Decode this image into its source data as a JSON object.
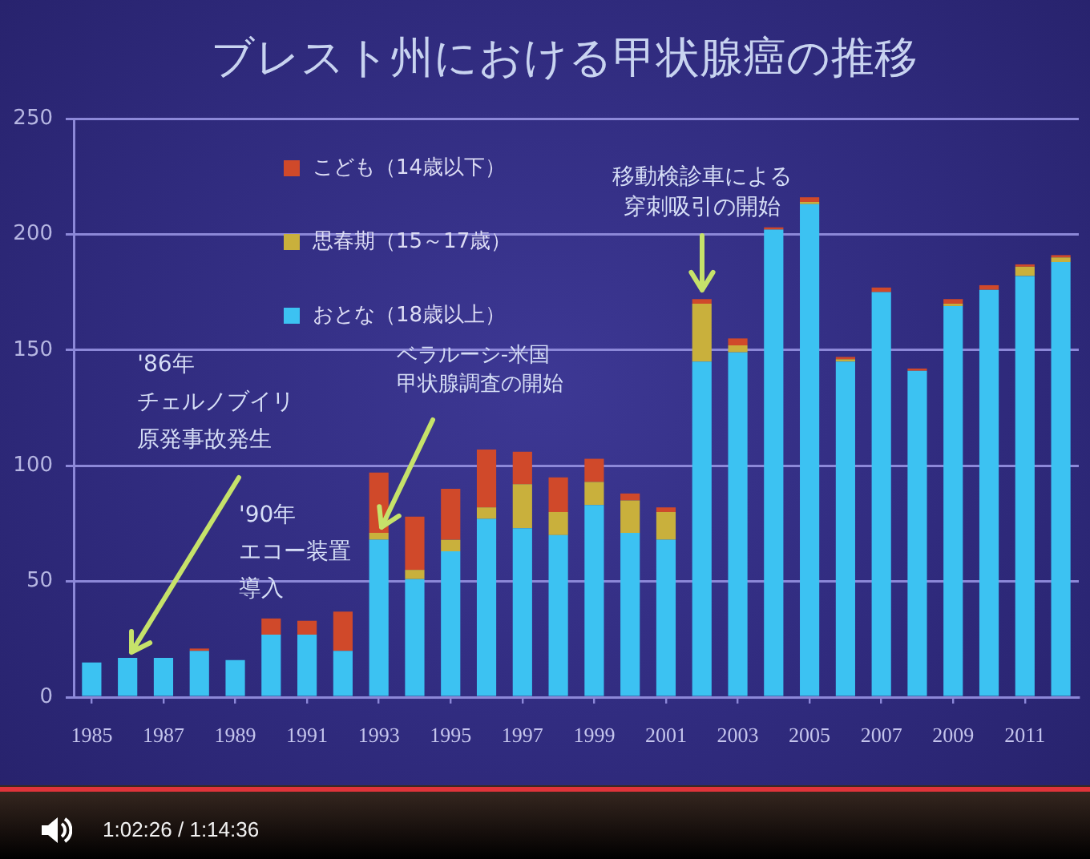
{
  "chart_data": {
    "type": "bar",
    "title": "ブレスト州における甲状腺癌の推移",
    "x": [
      1985,
      1986,
      1987,
      1988,
      1989,
      1990,
      1991,
      1992,
      1993,
      1994,
      1995,
      1996,
      1997,
      1998,
      1999,
      2000,
      2001,
      2002,
      2003,
      2004,
      2005,
      2006,
      2007,
      2008,
      2009,
      2010,
      2011,
      2012
    ],
    "xlim": [
      1984.5,
      2012.5
    ],
    "xticks": [
      1985,
      1987,
      1989,
      1991,
      1993,
      1995,
      1997,
      1999,
      2001,
      2003,
      2005,
      2007,
      2009,
      2011
    ],
    "ylim": [
      0,
      250
    ],
    "yticks": [
      0,
      50,
      100,
      150,
      200,
      250
    ],
    "stacked": true,
    "grid": "y",
    "legend": "top left",
    "series": [
      {
        "name": "おとな（18歳以上）",
        "color": "#3cc2f2",
        "values": [
          15,
          17,
          17,
          20,
          16,
          27,
          27,
          20,
          68,
          51,
          63,
          77,
          73,
          70,
          83,
          71,
          68,
          145,
          149,
          202,
          213,
          145,
          175,
          141,
          169,
          176,
          182,
          188
        ]
      },
      {
        "name": "思春期（15～17歳）",
        "color": "#c9b03c",
        "values": [
          0,
          0,
          0,
          0,
          0,
          0,
          0,
          0,
          3,
          4,
          5,
          5,
          19,
          10,
          10,
          14,
          12,
          25,
          3,
          0,
          1,
          1,
          0,
          0,
          1,
          0,
          4,
          2
        ]
      },
      {
        "name": "こども（14歳以下）",
        "color": "#d0492a",
        "values": [
          0,
          0,
          0,
          1,
          0,
          7,
          6,
          17,
          26,
          23,
          22,
          25,
          14,
          15,
          10,
          3,
          2,
          2,
          3,
          1,
          2,
          1,
          2,
          1,
          2,
          2,
          1,
          1
        ]
      }
    ],
    "annotations": [
      {
        "text": "'86年チェルノブイリ原発事故発生",
        "x": 1986,
        "y": 17
      },
      "'90年エコー装置導入",
      {
        "text": "ベラルーシ-米国甲状腺調査の開始",
        "x": 1993,
        "y": 71
      },
      {
        "text": "移動検診車による穿刺吸引の開始",
        "x": 2002,
        "y": 172
      },
      "1:02:26 / 1:14:36"
    ]
  }
}
